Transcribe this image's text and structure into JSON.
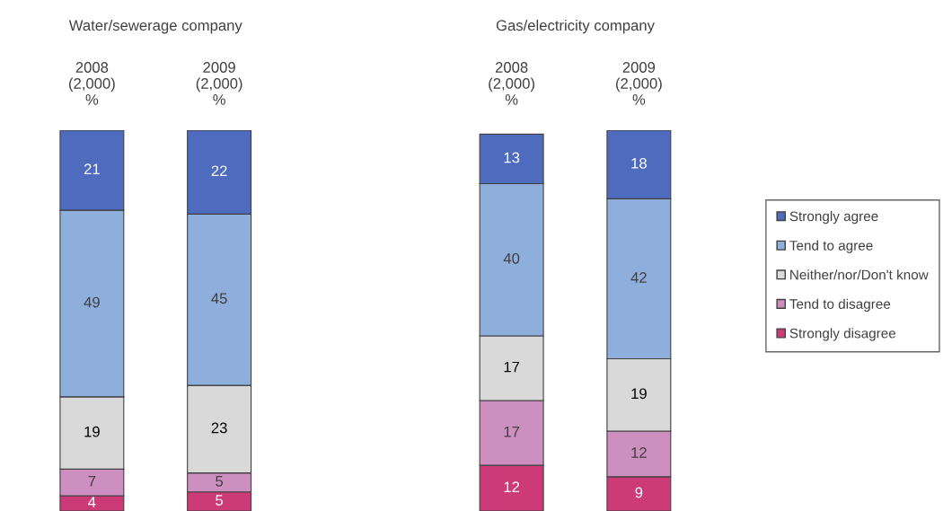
{
  "chart_data": [
    {
      "type": "bar",
      "stacked": true,
      "title": "Water/sewerage company",
      "categories": [
        "2008\n(2,000)\n%",
        "2009\n(2,000)\n%"
      ],
      "data_labels": true,
      "legend": "right",
      "series": [
        {
          "name": "Strongly disagree",
          "color": "#cc3a78",
          "values": [
            4,
            5
          ]
        },
        {
          "name": "Tend to disagree",
          "color": "#cc8fbf",
          "values": [
            7,
            5
          ]
        },
        {
          "name": "Neither/nor/Don't know",
          "color": "#d9d9d9",
          "values": [
            19,
            23
          ]
        },
        {
          "name": "Tend to agree",
          "color": "#8eaedc",
          "values": [
            49,
            45
          ]
        },
        {
          "name": "Strongly agree",
          "color": "#4f6bbd",
          "values": [
            21,
            22
          ]
        }
      ]
    },
    {
      "type": "bar",
      "stacked": true,
      "title": "Gas/electricity company",
      "categories": [
        "2008\n(2,000)\n%",
        "2009\n(2,000)\n%"
      ],
      "data_labels": true,
      "series": [
        {
          "color": "#cc3a78",
          "values": [
            12,
            9
          ]
        },
        {
          "color": "#cc8fbf",
          "values": [
            17,
            12
          ]
        },
        {
          "color": "#d9d9d9",
          "values": [
            17,
            19
          ]
        },
        {
          "color": "#8eaedc",
          "values": [
            40,
            42
          ]
        },
        {
          "color": "#4f6bbd",
          "values": [
            13,
            18
          ]
        }
      ]
    }
  ]
}
